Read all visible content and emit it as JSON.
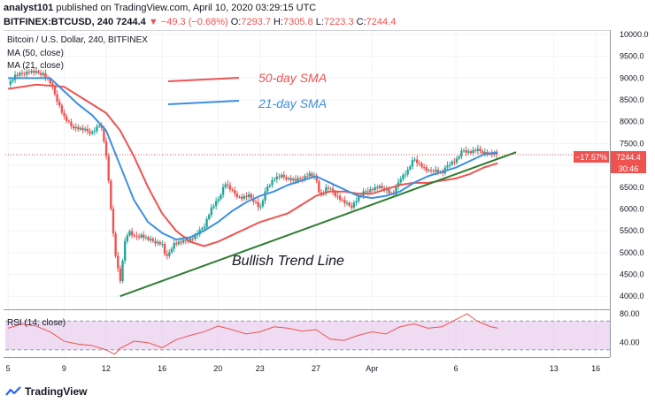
{
  "header": {
    "user": "analyst101",
    "published": "published on TradingView.com, April 10, 2020 03:29:15 UTC",
    "symbol": "BITFINEX:BTCUSD, 240",
    "last": "7244.4",
    "change": "▼ −49.3 (−0.68%)",
    "o_label": "O:",
    "o_value": "7293.7",
    "h_label": "H:",
    "h_value": "7305.8",
    "l_label": "L:",
    "l_value": "7223.3",
    "c_label": "C:",
    "c_value": "7244.4"
  },
  "legend": {
    "title": "Bitcoin / U.S. Dollar, 240, BITFINEX",
    "ma50": "MA (50, close)",
    "ma21": "MA (21, close)",
    "rsi": "RSI (14, close)"
  },
  "annotations": {
    "sma50": "50-day SMA",
    "sma21": "21-day SMA",
    "trend": "Bullish Trend Line"
  },
  "price_tags": {
    "pct": "−17.57%",
    "price": "7244.4",
    "timer": "30:46"
  },
  "footer": {
    "brand": "TradingView"
  },
  "colors": {
    "up": "#26a69a",
    "down": "#ef5350",
    "sma50": "#ef5350",
    "sma21": "#3c8fe0",
    "trend": "#2e7d32",
    "rsi_line": "#ef5350",
    "rsi_band": "#e1bee7"
  },
  "chart_data": [
    {
      "type": "candlestick",
      "title": "Bitcoin / U.S. Dollar, 240, BITFINEX",
      "y_ticks": [
        4000,
        4500,
        5000,
        5500,
        6000,
        6500,
        7000,
        7500,
        8000,
        8500,
        9000,
        9500,
        10000
      ],
      "y_tick_labels": [
        "4000.0",
        "4500.0",
        "5000.0",
        "5500.0",
        "6000.0",
        "6500.0",
        "7000.0",
        "7500.0",
        "8000.0",
        "8500.0",
        "9000.0",
        "9500.0",
        "10000.0"
      ],
      "ylim": [
        3700,
        10100
      ],
      "x_tick_labels": [
        "5",
        "9",
        "12",
        "16",
        "20",
        "23",
        "27",
        "Apr",
        "6",
        "13",
        "16"
      ],
      "x_tick_day": [
        5,
        9,
        12,
        16,
        20,
        23,
        27,
        31,
        37,
        44,
        47
      ],
      "price_path": [
        [
          5,
          8850
        ],
        [
          5.5,
          9050
        ],
        [
          6.5,
          9150
        ],
        [
          7.5,
          9100
        ],
        [
          8,
          8900
        ],
        [
          8.5,
          8500
        ],
        [
          9,
          8100
        ],
        [
          9.5,
          7900
        ],
        [
          10,
          7850
        ],
        [
          10.5,
          7800
        ],
        [
          11,
          7750
        ],
        [
          11.6,
          7950
        ],
        [
          12,
          7300
        ],
        [
          12.3,
          6200
        ],
        [
          12.6,
          5100
        ],
        [
          13,
          4300
        ],
        [
          13.3,
          5200
        ],
        [
          13.6,
          5500
        ],
        [
          14,
          5350
        ],
        [
          14.5,
          5400
        ],
        [
          15,
          5300
        ],
        [
          15.5,
          5250
        ],
        [
          16,
          5200
        ],
        [
          16.3,
          4850
        ],
        [
          16.8,
          5200
        ],
        [
          17.5,
          5250
        ],
        [
          18.3,
          5350
        ],
        [
          19,
          5600
        ],
        [
          19.5,
          6000
        ],
        [
          20,
          6200
        ],
        [
          20.5,
          6600
        ],
        [
          21,
          6400
        ],
        [
          21.6,
          6250
        ],
        [
          22.2,
          6300
        ],
        [
          22.7,
          6150
        ],
        [
          23,
          6000
        ],
        [
          23.5,
          6500
        ],
        [
          24,
          6700
        ],
        [
          24.5,
          6750
        ],
        [
          25,
          6700
        ],
        [
          25.5,
          6650
        ],
        [
          26,
          6700
        ],
        [
          26.5,
          6800
        ],
        [
          27,
          6700
        ],
        [
          27.3,
          6300
        ],
        [
          27.8,
          6500
        ],
        [
          28.5,
          6300
        ],
        [
          29,
          6150
        ],
        [
          29.5,
          6050
        ],
        [
          30,
          6250
        ],
        [
          30.5,
          6400
        ],
        [
          31,
          6450
        ],
        [
          31.5,
          6500
        ],
        [
          32,
          6450
        ],
        [
          32.5,
          6300
        ],
        [
          33,
          6700
        ],
        [
          33.5,
          6850
        ],
        [
          34,
          7150
        ],
        [
          34.5,
          7000
        ],
        [
          35,
          6850
        ],
        [
          35.5,
          6900
        ],
        [
          36,
          6800
        ],
        [
          36.5,
          7050
        ],
        [
          37,
          7100
        ],
        [
          37.5,
          7350
        ],
        [
          38,
          7300
        ],
        [
          38.5,
          7350
        ],
        [
          39,
          7300
        ],
        [
          39.5,
          7250
        ],
        [
          40,
          7244.4
        ]
      ],
      "sma50_path": [
        [
          5,
          8750
        ],
        [
          7,
          8850
        ],
        [
          9,
          8800
        ],
        [
          10.5,
          8500
        ],
        [
          12,
          8200
        ],
        [
          13,
          7800
        ],
        [
          14,
          7200
        ],
        [
          15,
          6500
        ],
        [
          16,
          5900
        ],
        [
          17,
          5500
        ],
        [
          18,
          5250
        ],
        [
          19,
          5150
        ],
        [
          20,
          5250
        ],
        [
          21,
          5400
        ],
        [
          22,
          5550
        ],
        [
          23,
          5700
        ],
        [
          24,
          5800
        ],
        [
          25,
          5900
        ],
        [
          26,
          6100
        ],
        [
          27,
          6300
        ],
        [
          28,
          6400
        ],
        [
          29,
          6400
        ],
        [
          30,
          6350
        ],
        [
          31,
          6350
        ],
        [
          32,
          6450
        ],
        [
          33,
          6550
        ],
        [
          34,
          6600
        ],
        [
          35,
          6600
        ],
        [
          36,
          6650
        ],
        [
          37,
          6700
        ],
        [
          38,
          6800
        ],
        [
          39,
          6950
        ],
        [
          40,
          7050
        ]
      ],
      "sma21_path": [
        [
          5,
          9000
        ],
        [
          7,
          9000
        ],
        [
          8,
          9000
        ],
        [
          9,
          8700
        ],
        [
          10,
          8400
        ],
        [
          11,
          8150
        ],
        [
          12,
          7800
        ],
        [
          13,
          7000
        ],
        [
          14,
          6200
        ],
        [
          15,
          5700
        ],
        [
          16,
          5450
        ],
        [
          17,
          5300
        ],
        [
          18,
          5350
        ],
        [
          19,
          5500
        ],
        [
          20,
          5700
        ],
        [
          21,
          5950
        ],
        [
          22,
          6150
        ],
        [
          23,
          6300
        ],
        [
          24,
          6400
        ],
        [
          25,
          6550
        ],
        [
          26,
          6650
        ],
        [
          27,
          6750
        ],
        [
          28,
          6600
        ],
        [
          29,
          6450
        ],
        [
          30,
          6300
        ],
        [
          31,
          6250
        ],
        [
          32,
          6300
        ],
        [
          33,
          6400
        ],
        [
          34,
          6600
        ],
        [
          35,
          6750
        ],
        [
          36,
          6850
        ],
        [
          37,
          6950
        ],
        [
          38,
          7100
        ],
        [
          39,
          7250
        ],
        [
          40,
          7300
        ]
      ],
      "trendline": [
        [
          13,
          4000
        ],
        [
          41.3,
          7300
        ]
      ],
      "current_price": 7244.4
    },
    {
      "type": "line",
      "title": "RSI (14, close)",
      "y_tick_labels": [
        "80.00",
        "40.00"
      ],
      "y_ticks": [
        80,
        40
      ],
      "band": [
        30,
        70
      ],
      "ylim": [
        20,
        85
      ],
      "rsi_path": [
        [
          5,
          60
        ],
        [
          6,
          66
        ],
        [
          7,
          63
        ],
        [
          8,
          55
        ],
        [
          9,
          42
        ],
        [
          10,
          38
        ],
        [
          11,
          36
        ],
        [
          12,
          30
        ],
        [
          12.6,
          24
        ],
        [
          13,
          32
        ],
        [
          14,
          42
        ],
        [
          15,
          40
        ],
        [
          16,
          33
        ],
        [
          17,
          44
        ],
        [
          18,
          50
        ],
        [
          19,
          55
        ],
        [
          20,
          63
        ],
        [
          21,
          58
        ],
        [
          22,
          52
        ],
        [
          23,
          55
        ],
        [
          24,
          62
        ],
        [
          25,
          60
        ],
        [
          26,
          56
        ],
        [
          27,
          58
        ],
        [
          28,
          45
        ],
        [
          29,
          43
        ],
        [
          30,
          50
        ],
        [
          31,
          55
        ],
        [
          32,
          52
        ],
        [
          33,
          62
        ],
        [
          34,
          66
        ],
        [
          35,
          60
        ],
        [
          36,
          62
        ],
        [
          37,
          72
        ],
        [
          37.8,
          80
        ],
        [
          38.5,
          70
        ],
        [
          39,
          66
        ],
        [
          39.5,
          62
        ],
        [
          40,
          60
        ]
      ]
    }
  ]
}
